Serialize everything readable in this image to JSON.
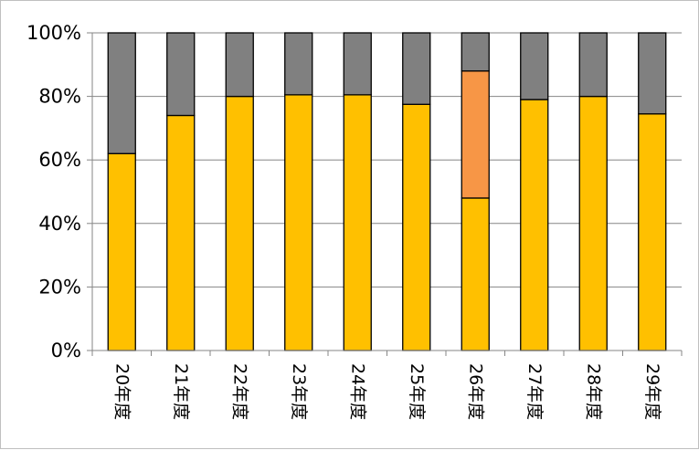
{
  "chart_data": {
    "type": "bar",
    "stacked": true,
    "percent_stacked": true,
    "categories": [
      "20年度",
      "21年度",
      "22年度",
      "23年度",
      "24年度",
      "25年度",
      "26年度",
      "27年度",
      "28年度",
      "29年度"
    ],
    "series": [
      {
        "color": "#FFC000",
        "values": [
          62,
          74,
          80,
          80.5,
          80.5,
          77.5,
          48,
          79,
          80,
          74.5
        ]
      },
      {
        "color": "#F79646",
        "values": [
          0,
          0,
          0,
          0,
          0,
          0,
          40,
          0,
          0,
          0
        ]
      },
      {
        "color": "#808080",
        "values": [
          38,
          26,
          20,
          19.5,
          19.5,
          22.5,
          12,
          21,
          20,
          25.5
        ]
      }
    ],
    "y_ticks": [
      "0%",
      "20%",
      "40%",
      "60%",
      "80%",
      "100%"
    ],
    "ylim": [
      0,
      100
    ],
    "grid": true,
    "legend": "none",
    "title": "",
    "xlabel": "",
    "ylabel": ""
  }
}
